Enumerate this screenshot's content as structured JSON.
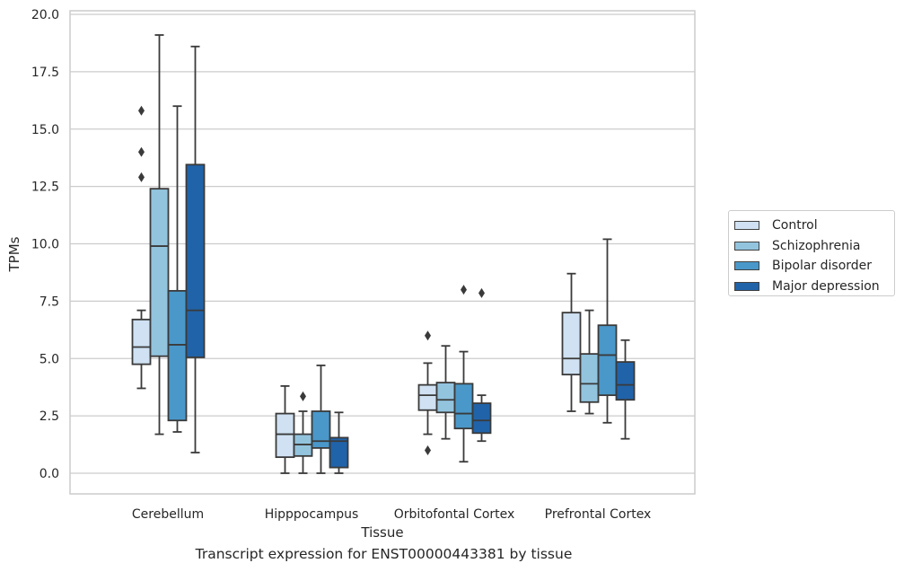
{
  "caption": "Transcript expression for ENST00000443381 by tissue",
  "colors": {
    "Control": "#cfe1f2",
    "Schizophrenia": "#93c4de",
    "Bipolar disorder": "#4a98c9",
    "Major depression": "#2163a8",
    "grid": "#cccccc",
    "frame": "#cccccc",
    "box_edge": "#3a3a3a"
  },
  "chart_data": {
    "type": "box",
    "title": "",
    "xlabel": "Tissue",
    "ylabel": "TPMs",
    "ylim": [
      -0.9,
      20.2
    ],
    "yticks": [
      "0.0",
      "2.5",
      "5.0",
      "7.5",
      "10.0",
      "12.5",
      "15.0",
      "17.5",
      "20.0"
    ],
    "grid": "horizontal",
    "legend_position": "right",
    "categories": [
      "Cerebellum",
      "Hipppocampus",
      "Orbitofontal Cortex",
      "Prefrontal Cortex"
    ],
    "series": [
      {
        "name": "Control",
        "boxes": [
          {
            "whisker_low": 3.7,
            "q1": 4.75,
            "median": 5.5,
            "q3": 6.7,
            "whisker_high": 7.1,
            "outliers": [
              12.9,
              14.0,
              15.8
            ]
          },
          {
            "whisker_low": 0.0,
            "q1": 0.7,
            "median": 1.7,
            "q3": 2.6,
            "whisker_high": 3.8,
            "outliers": []
          },
          {
            "whisker_low": 1.7,
            "q1": 2.75,
            "median": 3.4,
            "q3": 3.85,
            "whisker_high": 4.8,
            "outliers": [
              1.0,
              6.0
            ]
          },
          {
            "whisker_low": 2.7,
            "q1": 4.3,
            "median": 5.0,
            "q3": 7.0,
            "whisker_high": 8.7,
            "outliers": []
          }
        ]
      },
      {
        "name": "Schizophrenia",
        "boxes": [
          {
            "whisker_low": 1.7,
            "q1": 5.1,
            "median": 9.9,
            "q3": 12.4,
            "whisker_high": 19.1,
            "outliers": []
          },
          {
            "whisker_low": 0.0,
            "q1": 0.75,
            "median": 1.25,
            "q3": 1.7,
            "whisker_high": 2.7,
            "outliers": [
              3.35
            ]
          },
          {
            "whisker_low": 1.5,
            "q1": 2.65,
            "median": 3.2,
            "q3": 3.95,
            "whisker_high": 5.55,
            "outliers": []
          },
          {
            "whisker_low": 2.6,
            "q1": 3.1,
            "median": 3.9,
            "q3": 5.2,
            "whisker_high": 7.1,
            "outliers": []
          }
        ]
      },
      {
        "name": "Bipolar disorder",
        "boxes": [
          {
            "whisker_low": 1.8,
            "q1": 2.3,
            "median": 5.6,
            "q3": 7.95,
            "whisker_high": 16.0,
            "outliers": []
          },
          {
            "whisker_low": 0.0,
            "q1": 1.1,
            "median": 1.4,
            "q3": 2.7,
            "whisker_high": 4.7,
            "outliers": []
          },
          {
            "whisker_low": 0.5,
            "q1": 1.95,
            "median": 2.6,
            "q3": 3.9,
            "whisker_high": 5.3,
            "outliers": [
              8.0
            ]
          },
          {
            "whisker_low": 2.2,
            "q1": 3.4,
            "median": 5.15,
            "q3": 6.45,
            "whisker_high": 10.2,
            "outliers": []
          }
        ]
      },
      {
        "name": "Major depression",
        "boxes": [
          {
            "whisker_low": 0.9,
            "q1": 5.05,
            "median": 7.1,
            "q3": 13.45,
            "whisker_high": 18.6,
            "outliers": []
          },
          {
            "whisker_low": 0.0,
            "q1": 0.25,
            "median": 1.4,
            "q3": 1.55,
            "whisker_high": 2.65,
            "outliers": []
          },
          {
            "whisker_low": 1.4,
            "q1": 1.75,
            "median": 2.3,
            "q3": 3.05,
            "whisker_high": 3.4,
            "outliers": [
              7.85
            ]
          },
          {
            "whisker_low": 1.5,
            "q1": 3.2,
            "median": 3.85,
            "q3": 4.85,
            "whisker_high": 5.8,
            "outliers": []
          }
        ]
      }
    ]
  }
}
